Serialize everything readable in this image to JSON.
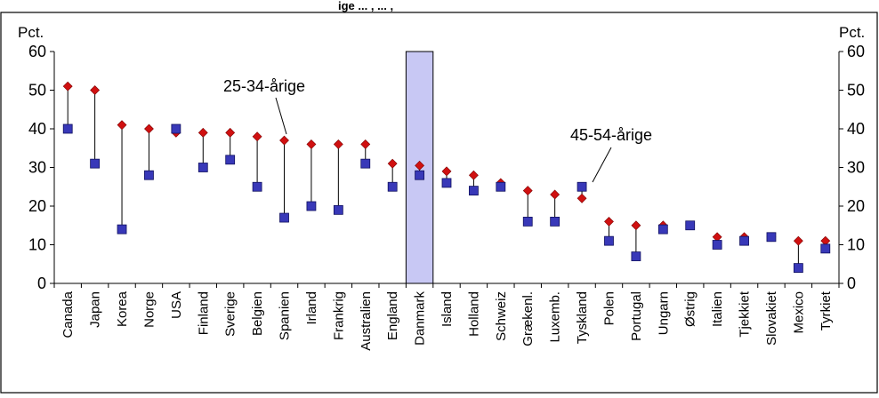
{
  "caption_fragment": "ige ... , ... ,",
  "chart_data": {
    "type": "scatter",
    "y_unit_left": "Pct.",
    "y_unit_right": "Pct.",
    "ylim": [
      0,
      60
    ],
    "yticks": [
      0,
      10,
      20,
      30,
      40,
      50,
      60
    ],
    "categories": [
      "Canada",
      "Japan",
      "Korea",
      "Norge",
      "USA",
      "Finland",
      "Sverige",
      "Belgien",
      "Spanien",
      "Irland",
      "Frankrig",
      "Australien",
      "England",
      "Danmark",
      "Island",
      "Holland",
      "Schweiz",
      "Grækenl.",
      "Luxemb.",
      "Tyskland",
      "Polen",
      "Portugal",
      "Ungarn",
      "Østrig",
      "Italien",
      "Tjekkiet",
      "Slovakiet",
      "Mexico",
      "Tyrkiet"
    ],
    "highlight_category": "Danmark",
    "series": [
      {
        "name": "25-34-årige",
        "marker": "diamond",
        "color": "#d01010",
        "values": [
          51,
          50,
          41,
          40,
          39,
          39,
          39,
          38,
          37,
          36,
          36,
          36,
          31,
          30.5,
          29,
          28,
          26,
          24,
          23,
          22,
          16,
          15,
          15,
          15,
          12,
          12,
          12,
          11,
          11
        ]
      },
      {
        "name": "45-54-årige",
        "marker": "square",
        "color": "#3838b8",
        "values": [
          40,
          31,
          14,
          28,
          40,
          30,
          32,
          25,
          17,
          20,
          19,
          31,
          25,
          28,
          26,
          24,
          25,
          16,
          16,
          25,
          11,
          7,
          14,
          15,
          10,
          11,
          12,
          4,
          9
        ]
      }
    ],
    "annotations": [
      {
        "text": "25-34-årige"
      },
      {
        "text": "45-54-årige"
      }
    ],
    "colors": {
      "highlight_fill": "#c8c8f4",
      "highlight_stroke": "#000000"
    }
  }
}
